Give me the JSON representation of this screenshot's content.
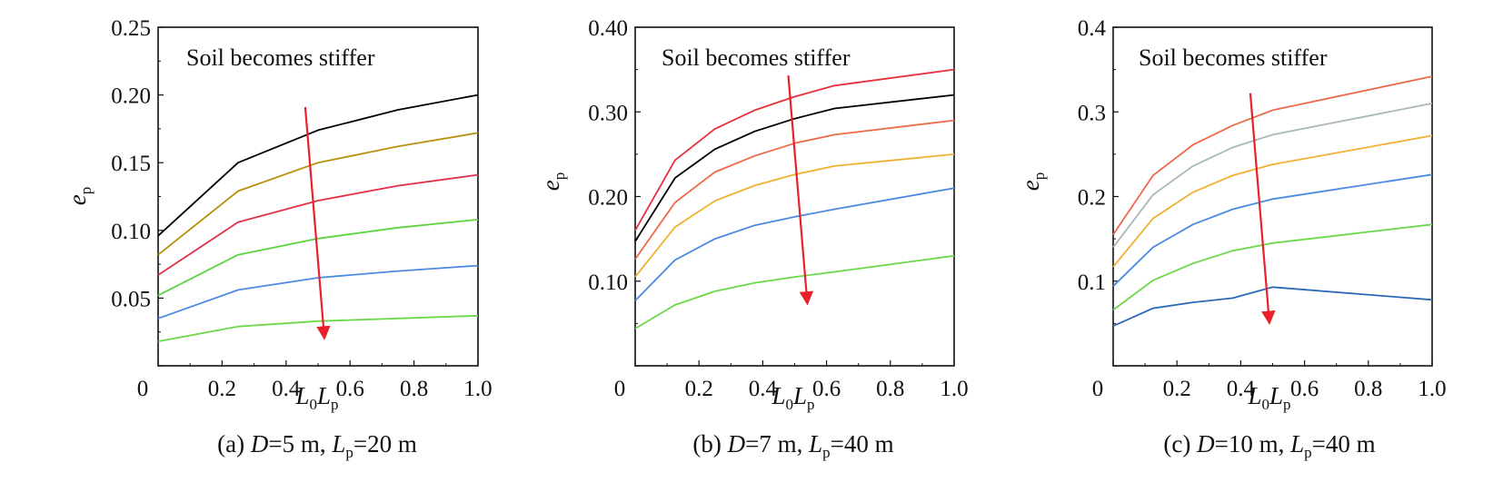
{
  "figure": {
    "panels": [
      {
        "caption": {
          "prefix": "(a) ",
          "d_label": "D",
          "d_value": "=5 m, ",
          "l_label": "L",
          "l_sub": "p",
          "l_value": "=20 m"
        },
        "annotation": "Soil becomes stiffer"
      },
      {
        "caption": {
          "prefix": "(b) ",
          "d_label": "D",
          "d_value": "=7 m, ",
          "l_label": "L",
          "l_sub": "p",
          "l_value": "=40 m"
        },
        "annotation": "Soil becomes stiffer"
      },
      {
        "caption": {
          "prefix": "(c) ",
          "d_label": "D",
          "d_value": "=10 m, ",
          "l_label": "L",
          "l_sub": "p",
          "l_value": "=40 m"
        },
        "annotation": "Soil becomes stiffer"
      }
    ],
    "ylabel": {
      "main": "e",
      "sub": "p"
    },
    "xlabel": {
      "a": "L",
      "a_sub": "0",
      "b": "L",
      "b_sub": "p"
    },
    "arrow_color": "#e8202a"
  },
  "chart_data": [
    {
      "type": "line",
      "x_origin_label": "0",
      "xticks": [
        "0.2",
        "0.4",
        "0.6",
        "0.8",
        "1.0"
      ],
      "xlim": [
        0,
        1.0
      ],
      "yticks": [
        "0.05",
        "0.10",
        "0.15",
        "0.20",
        "0.25"
      ],
      "ylim": [
        0,
        0.25
      ],
      "series": [
        {
          "color": "#000000",
          "x": [
            0,
            0.25,
            0.5,
            0.75,
            1.0
          ],
          "y": [
            0.096,
            0.15,
            0.174,
            0.189,
            0.2
          ]
        },
        {
          "color": "#b8900c",
          "x": [
            0,
            0.25,
            0.5,
            0.75,
            1.0
          ],
          "y": [
            0.082,
            0.129,
            0.15,
            0.162,
            0.172
          ]
        },
        {
          "color": "#e0304a",
          "x": [
            0,
            0.25,
            0.5,
            0.75,
            1.0
          ],
          "y": [
            0.067,
            0.106,
            0.122,
            0.133,
            0.141
          ]
        },
        {
          "color": "#5ad43c",
          "x": [
            0,
            0.25,
            0.5,
            0.75,
            1.0
          ],
          "y": [
            0.052,
            0.082,
            0.094,
            0.102,
            0.108
          ]
        },
        {
          "color": "#4a8ae0",
          "x": [
            0,
            0.25,
            0.5,
            0.75,
            1.0
          ],
          "y": [
            0.035,
            0.056,
            0.065,
            0.07,
            0.074
          ]
        },
        {
          "color": "#6ad848",
          "x": [
            0,
            0.25,
            0.5,
            0.75,
            1.0
          ],
          "y": [
            0.018,
            0.029,
            0.033,
            0.035,
            0.037
          ]
        }
      ],
      "arrow": {
        "from": [
          0.46,
          0.191
        ],
        "to": [
          0.52,
          0.02
        ]
      }
    },
    {
      "type": "line",
      "x_origin_label": "0",
      "xticks": [
        "0.2",
        "0.4",
        "0.6",
        "0.8",
        "1.0"
      ],
      "xlim": [
        0,
        1.0
      ],
      "yticks": [
        "0.10",
        "0.20",
        "0.30",
        "0.40"
      ],
      "ylim": [
        0,
        0.4
      ],
      "series": [
        {
          "color": "#e8303a",
          "x": [
            0,
            0.125,
            0.25,
            0.375,
            0.5,
            0.625,
            1.0
          ],
          "y": [
            0.16,
            0.243,
            0.28,
            0.302,
            0.318,
            0.331,
            0.35
          ]
        },
        {
          "color": "#000000",
          "x": [
            0,
            0.125,
            0.25,
            0.375,
            0.5,
            0.625,
            1.0
          ],
          "y": [
            0.147,
            0.222,
            0.256,
            0.277,
            0.292,
            0.304,
            0.32
          ]
        },
        {
          "color": "#ec6a48",
          "x": [
            0,
            0.125,
            0.25,
            0.375,
            0.5,
            0.625,
            1.0
          ],
          "y": [
            0.126,
            0.193,
            0.229,
            0.248,
            0.263,
            0.273,
            0.29
          ]
        },
        {
          "color": "#f0b030",
          "x": [
            0,
            0.125,
            0.25,
            0.375,
            0.5,
            0.625,
            1.0
          ],
          "y": [
            0.105,
            0.164,
            0.195,
            0.213,
            0.226,
            0.236,
            0.25
          ]
        },
        {
          "color": "#4a8ae0",
          "x": [
            0,
            0.125,
            0.25,
            0.375,
            0.5,
            0.625,
            1.0
          ],
          "y": [
            0.077,
            0.125,
            0.15,
            0.166,
            0.176,
            0.185,
            0.21
          ]
        },
        {
          "color": "#6ad848",
          "x": [
            0,
            0.125,
            0.25,
            0.375,
            0.5,
            0.625,
            1.0
          ],
          "y": [
            0.044,
            0.072,
            0.088,
            0.098,
            0.105,
            0.111,
            0.13
          ]
        }
      ],
      "arrow": {
        "from": [
          0.48,
          0.343
        ],
        "to": [
          0.54,
          0.073
        ]
      }
    },
    {
      "type": "line",
      "x_origin_label": "0",
      "xticks": [
        "0.2",
        "0.4",
        "0.6",
        "0.8",
        "1.0"
      ],
      "xlim": [
        0,
        1.0
      ],
      "yticks": [
        "0.1",
        "0.2",
        "0.3",
        "0.4"
      ],
      "ylim": [
        0,
        0.4
      ],
      "series": [
        {
          "color": "#ec6a48",
          "x": [
            0,
            0.125,
            0.25,
            0.375,
            0.5,
            1.0
          ],
          "y": [
            0.155,
            0.225,
            0.261,
            0.284,
            0.302,
            0.342
          ]
        },
        {
          "color": "#a8b8b8",
          "x": [
            0,
            0.125,
            0.25,
            0.375,
            0.5,
            1.0
          ],
          "y": [
            0.14,
            0.202,
            0.236,
            0.258,
            0.273,
            0.31
          ]
        },
        {
          "color": "#f0b030",
          "x": [
            0,
            0.125,
            0.25,
            0.375,
            0.5,
            1.0
          ],
          "y": [
            0.117,
            0.174,
            0.205,
            0.225,
            0.238,
            0.272
          ]
        },
        {
          "color": "#4a8ae0",
          "x": [
            0,
            0.125,
            0.25,
            0.375,
            0.5,
            1.0
          ],
          "y": [
            0.094,
            0.14,
            0.167,
            0.185,
            0.197,
            0.226
          ]
        },
        {
          "color": "#6ad848",
          "x": [
            0,
            0.125,
            0.25,
            0.375,
            0.5,
            1.0
          ],
          "y": [
            0.066,
            0.101,
            0.121,
            0.136,
            0.145,
            0.167
          ]
        },
        {
          "color": "#2a68b8",
          "x": [
            0,
            0.125,
            0.25,
            0.375,
            0.5,
            1.0
          ],
          "y": [
            0.047,
            0.068,
            0.075,
            0.08,
            0.093,
            0.078
          ]
        }
      ],
      "arrow": {
        "from": [
          0.43,
          0.322
        ],
        "to": [
          0.49,
          0.05
        ]
      }
    }
  ]
}
